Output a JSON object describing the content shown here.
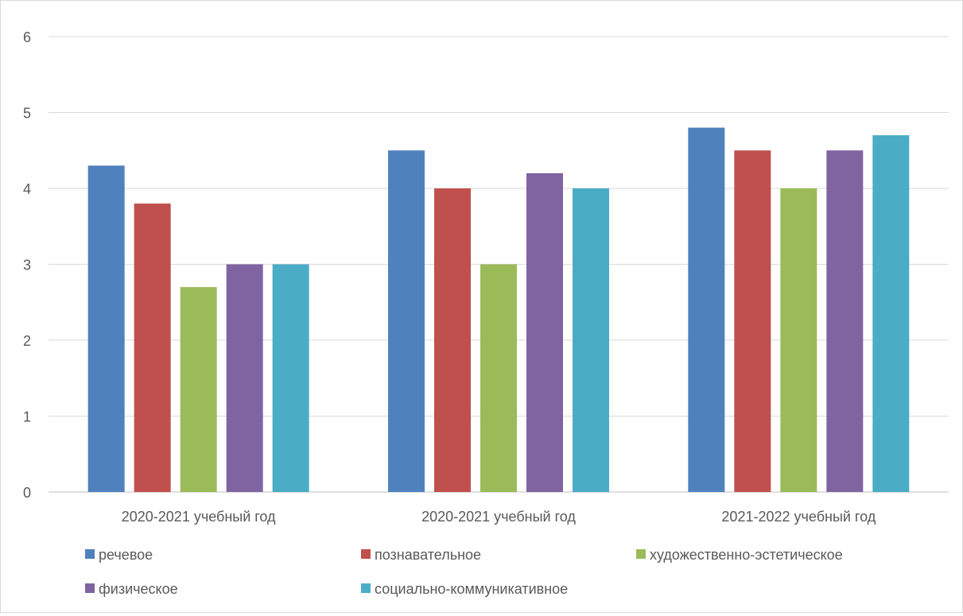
{
  "chart_data": {
    "type": "bar",
    "categories": [
      "2020-2021 учебный год",
      "2020-2021 учебный год",
      "2021-2022 учебный год"
    ],
    "series": [
      {
        "name": "речевое",
        "color": "#4f81bd",
        "values": [
          4.3,
          4.5,
          4.8
        ]
      },
      {
        "name": "познавательное",
        "color": "#c0504d",
        "values": [
          3.8,
          4.0,
          4.5
        ]
      },
      {
        "name": "художественно-эстетическое",
        "color": "#9bbb59",
        "values": [
          2.7,
          3.0,
          4.0
        ]
      },
      {
        "name": "физическое",
        "color": "#8064a2",
        "values": [
          3.0,
          4.2,
          4.5
        ]
      },
      {
        "name": "социально-коммуникативное",
        "color": "#4bacc6",
        "values": [
          3.0,
          4.0,
          4.7
        ]
      }
    ],
    "yticks": [
      "0",
      "1",
      "2",
      "3",
      "4",
      "5",
      "6"
    ],
    "ylim": [
      0,
      6
    ],
    "grid": true,
    "legend_position": "bottom"
  }
}
